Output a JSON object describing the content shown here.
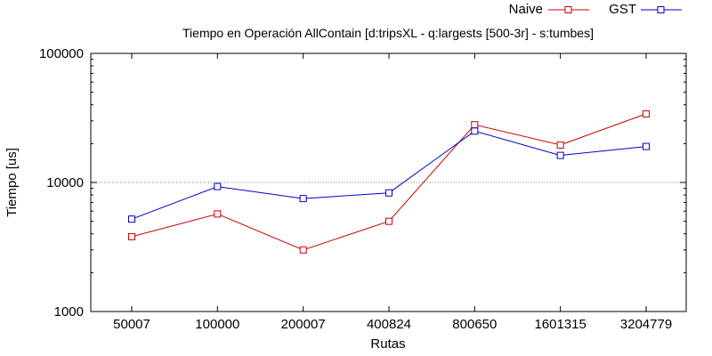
{
  "chart_data": {
    "type": "line",
    "title": "Tiempo en Operación AllContain [d:tripsXL - q:largests [500-3r] - s:tumbes]",
    "xlabel": "Rutas",
    "ylabel": "Tiempo [us]",
    "categories": [
      "50007",
      "100000",
      "200007",
      "400824",
      "800650",
      "1601315",
      "3204779"
    ],
    "y_scale": "log",
    "ylim": [
      1000,
      100000
    ],
    "y_ticks": [
      1000,
      10000,
      100000
    ],
    "y_tick_labels": [
      "1000",
      "10000",
      "100000"
    ],
    "gridlines": [
      10000
    ],
    "legend_position": "top-right",
    "series": [
      {
        "name": "Naive",
        "color": "#cc0000",
        "marker": "square",
        "values": [
          3800,
          5700,
          3000,
          5000,
          28000,
          19500,
          34000
        ]
      },
      {
        "name": "GST",
        "color": "#0000cc",
        "marker": "square",
        "values": [
          5200,
          9300,
          7500,
          8300,
          25000,
          16200,
          19000
        ]
      }
    ]
  }
}
